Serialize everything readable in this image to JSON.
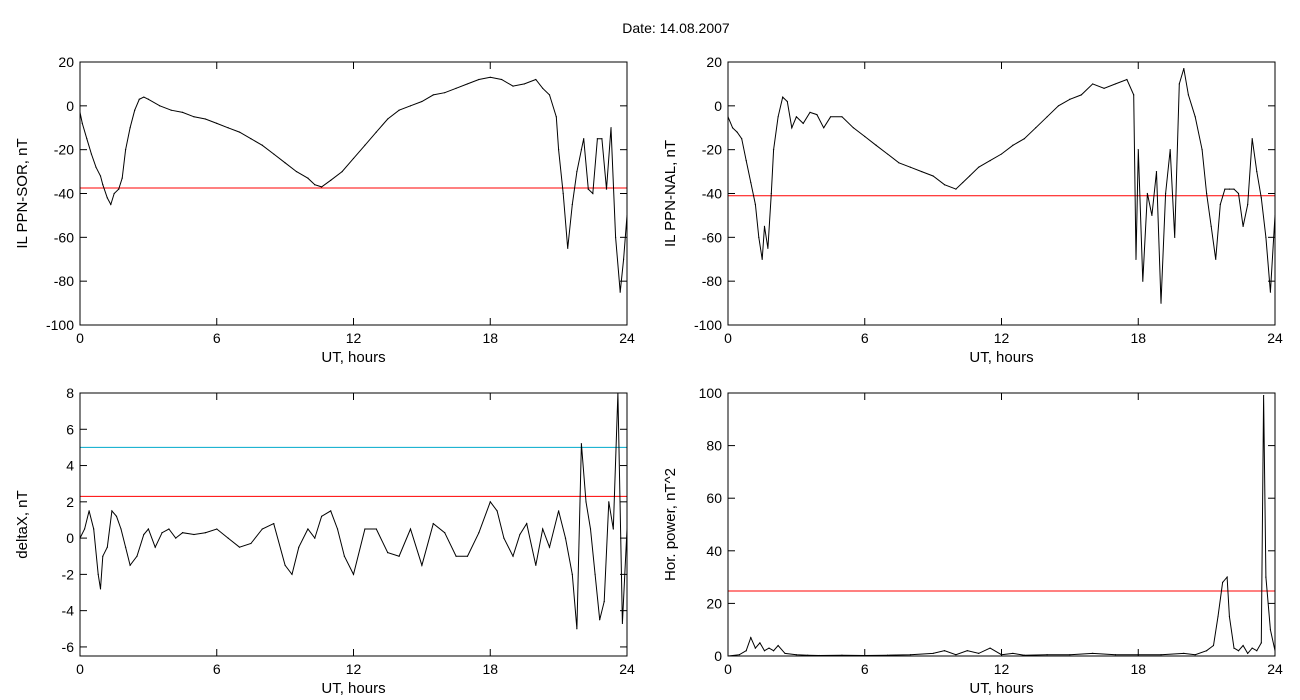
{
  "figure": {
    "title": "Date:  14.08.2007"
  },
  "colors": {
    "trace": "#000000",
    "red": "#ff0000",
    "blue": "#0033cc",
    "cyan": "#00aacc",
    "green": "#00cc00"
  },
  "chart_data": [
    {
      "id": "sor",
      "type": "line",
      "xlabel": "UT, hours",
      "ylabel": "IL PPN-SOR, nT",
      "xlim": [
        0,
        24
      ],
      "ylim": [
        -100,
        20
      ],
      "xticks": [
        0,
        6,
        12,
        18,
        24
      ],
      "yticks": [
        20,
        0,
        -20,
        -40,
        -60,
        -80,
        -100
      ],
      "hlines": [
        {
          "y": -37.5,
          "color": "#ff0000"
        }
      ],
      "series": [
        {
          "x": [
            0,
            0.1,
            0.3,
            0.5,
            0.7,
            0.9,
            1.0,
            1.2,
            1.35,
            1.5,
            1.7,
            1.85,
            2.0,
            2.2,
            2.4,
            2.6,
            2.8,
            3.0,
            3.5,
            4.0,
            4.5,
            5.0,
            5.5,
            6.0,
            6.5,
            7.0,
            7.5,
            8.0,
            8.5,
            9.0,
            9.5,
            10.0,
            10.3,
            10.6,
            11.0,
            11.5,
            12.0,
            12.5,
            13.0,
            13.5,
            14.0,
            14.5,
            15.0,
            15.5,
            16.0,
            16.5,
            17.0,
            17.5,
            18.0,
            18.5,
            19.0,
            19.5,
            20.0,
            20.3,
            20.6,
            20.9,
            21.0,
            21.2,
            21.4,
            21.6,
            21.8,
            22.0,
            22.1,
            22.3,
            22.5,
            22.7,
            22.9,
            23.1,
            23.3,
            23.5,
            23.7,
            23.85,
            24.0
          ],
          "y": [
            -3,
            -8,
            -15,
            -22,
            -28,
            -32,
            -36,
            -42,
            -45,
            -40,
            -38,
            -33,
            -20,
            -10,
            -2,
            3,
            4,
            3,
            0,
            -2,
            -3,
            -5,
            -6,
            -8,
            -10,
            -12,
            -15,
            -18,
            -22,
            -26,
            -30,
            -33,
            -36,
            -37,
            -34,
            -30,
            -24,
            -18,
            -12,
            -6,
            -2,
            0,
            2,
            5,
            6,
            8,
            10,
            12,
            13,
            12,
            9,
            10,
            12,
            8,
            5,
            -5,
            -20,
            -40,
            -65,
            -45,
            -30,
            -20,
            -15,
            -38,
            -40,
            -15,
            -15,
            -38,
            -10,
            -60,
            -85,
            -70,
            -50
          ]
        }
      ]
    },
    {
      "id": "nal",
      "type": "line",
      "xlabel": "UT, hours",
      "ylabel": "IL PPN-NAL, nT",
      "xlim": [
        0,
        24
      ],
      "ylim": [
        -100,
        20
      ],
      "xticks": [
        0,
        6,
        12,
        18,
        24
      ],
      "yticks": [
        20,
        0,
        -20,
        -40,
        -60,
        -80,
        -100
      ],
      "hlines": [
        {
          "y": -41,
          "color": "#ff0000"
        }
      ],
      "series": [
        {
          "x": [
            0,
            0.2,
            0.4,
            0.6,
            0.8,
            1.0,
            1.2,
            1.35,
            1.5,
            1.6,
            1.75,
            1.9,
            2.0,
            2.2,
            2.4,
            2.6,
            2.8,
            3.0,
            3.3,
            3.6,
            3.9,
            4.2,
            4.5,
            5.0,
            5.5,
            6.0,
            6.5,
            7.0,
            7.5,
            8.0,
            8.5,
            9.0,
            9.5,
            10.0,
            10.3,
            10.6,
            11.0,
            11.5,
            12.0,
            12.5,
            13.0,
            13.5,
            14.0,
            14.5,
            15.0,
            15.5,
            16.0,
            16.5,
            17.0,
            17.5,
            17.8,
            17.9,
            18.0,
            18.2,
            18.4,
            18.6,
            18.8,
            19.0,
            19.2,
            19.4,
            19.6,
            19.8,
            20.0,
            20.2,
            20.5,
            20.8,
            21.0,
            21.2,
            21.4,
            21.6,
            21.8,
            22.0,
            22.2,
            22.4,
            22.6,
            22.8,
            23.0,
            23.2,
            23.4,
            23.6,
            23.8,
            24.0
          ],
          "y": [
            -5,
            -10,
            -12,
            -15,
            -25,
            -35,
            -45,
            -60,
            -70,
            -55,
            -65,
            -40,
            -20,
            -5,
            4,
            2,
            -10,
            -5,
            -8,
            -3,
            -4,
            -10,
            -5,
            -5,
            -10,
            -14,
            -18,
            -22,
            -26,
            -28,
            -30,
            -32,
            -36,
            -38,
            -35,
            -32,
            -28,
            -25,
            -22,
            -18,
            -15,
            -10,
            -5,
            0,
            3,
            5,
            10,
            8,
            10,
            12,
            5,
            -70,
            -20,
            -80,
            -40,
            -50,
            -30,
            -90,
            -40,
            -20,
            -60,
            10,
            17,
            5,
            -5,
            -20,
            -40,
            -55,
            -70,
            -45,
            -38,
            -38,
            -38,
            -40,
            -55,
            -45,
            -15,
            -30,
            -42,
            -60,
            -85,
            -50
          ]
        }
      ]
    },
    {
      "id": "deltax",
      "type": "line",
      "xlabel": "UT, hours",
      "ylabel": "deltaX, nT",
      "xlim": [
        0,
        24
      ],
      "ylim": [
        -6.5,
        8
      ],
      "xticks": [
        0,
        6,
        12,
        18,
        24
      ],
      "yticks": [
        8,
        6,
        4,
        2,
        0,
        -2,
        -4,
        -6
      ],
      "hlines": [
        {
          "y": 5.0,
          "color": "#00aacc"
        },
        {
          "y": 2.3,
          "color": "#ff0000"
        }
      ],
      "series": [
        {
          "x": [
            0,
            0.2,
            0.4,
            0.6,
            0.8,
            0.9,
            1.0,
            1.2,
            1.4,
            1.6,
            1.8,
            2.0,
            2.2,
            2.5,
            2.8,
            3.0,
            3.3,
            3.6,
            3.9,
            4.2,
            4.5,
            5.0,
            5.5,
            6.0,
            6.5,
            7.0,
            7.5,
            8.0,
            8.5,
            9.0,
            9.3,
            9.6,
            10.0,
            10.3,
            10.6,
            11.0,
            11.3,
            11.6,
            12.0,
            12.5,
            13.0,
            13.5,
            14.0,
            14.5,
            15.0,
            15.5,
            16.0,
            16.5,
            17.0,
            17.5,
            18.0,
            18.3,
            18.6,
            19.0,
            19.3,
            19.6,
            20.0,
            20.3,
            20.6,
            21.0,
            21.3,
            21.6,
            21.8,
            22.0,
            22.2,
            22.4,
            22.6,
            22.8,
            23.0,
            23.2,
            23.4,
            23.6,
            23.8,
            24.0
          ],
          "y": [
            0,
            0.5,
            1.5,
            0.5,
            -2,
            -2.8,
            -1,
            -0.5,
            1.5,
            1.2,
            0.5,
            -0.5,
            -1.5,
            -1,
            0.2,
            0.5,
            -0.5,
            0.3,
            0.5,
            0,
            0.3,
            0.2,
            0.3,
            0.5,
            0,
            -0.5,
            -0.3,
            0.5,
            0.8,
            -1.5,
            -2,
            -0.5,
            0.5,
            0,
            1.2,
            1.5,
            0.5,
            -1,
            -2,
            0.5,
            0.5,
            -0.8,
            -1,
            0.5,
            -1.5,
            0.8,
            0.3,
            -1,
            -1,
            0.3,
            2,
            1.5,
            0,
            -1,
            0.2,
            0.8,
            -1.5,
            0.5,
            -0.5,
            1.5,
            0,
            -2,
            -5,
            5.2,
            2,
            0.5,
            -2,
            -4.5,
            -3.5,
            2,
            0.5,
            8,
            -4.7,
            0.5
          ]
        }
      ]
    },
    {
      "id": "power",
      "type": "line",
      "xlabel": "UT, hours",
      "ylabel": "Hor. power, nT^2",
      "xlim": [
        0,
        24
      ],
      "ylim": [
        0,
        100
      ],
      "xticks": [
        0,
        6,
        12,
        18,
        24
      ],
      "yticks": [
        100,
        80,
        60,
        40,
        20,
        0
      ],
      "hlines": [
        {
          "y": 24.7,
          "color": "#ff0000"
        }
      ],
      "series": [
        {
          "x": [
            0,
            0.5,
            0.8,
            1.0,
            1.2,
            1.4,
            1.6,
            1.8,
            2.0,
            2.2,
            2.5,
            3.0,
            3.5,
            4.0,
            5.0,
            6.0,
            7.0,
            8.0,
            9.0,
            9.5,
            10.0,
            10.5,
            11.0,
            11.5,
            12.0,
            12.5,
            13.0,
            14.0,
            15.0,
            16.0,
            17.0,
            18.0,
            19.0,
            20.0,
            20.5,
            21.0,
            21.3,
            21.5,
            21.7,
            21.9,
            22.0,
            22.2,
            22.4,
            22.6,
            22.8,
            23.0,
            23.2,
            23.4,
            23.5,
            23.6,
            23.8,
            24.0
          ],
          "y": [
            0,
            0.5,
            2,
            7,
            3,
            5,
            2,
            3,
            2,
            4,
            1,
            0.5,
            0.3,
            0.2,
            0.3,
            0.2,
            0.3,
            0.5,
            1,
            2,
            0.5,
            2,
            1,
            3,
            0.5,
            1,
            0.3,
            0.5,
            0.5,
            1,
            0.5,
            0.5,
            0.5,
            1,
            0.5,
            2,
            4,
            15,
            28,
            30,
            15,
            3,
            2,
            4,
            1,
            3,
            2,
            5,
            99,
            30,
            10,
            2
          ]
        }
      ]
    }
  ]
}
